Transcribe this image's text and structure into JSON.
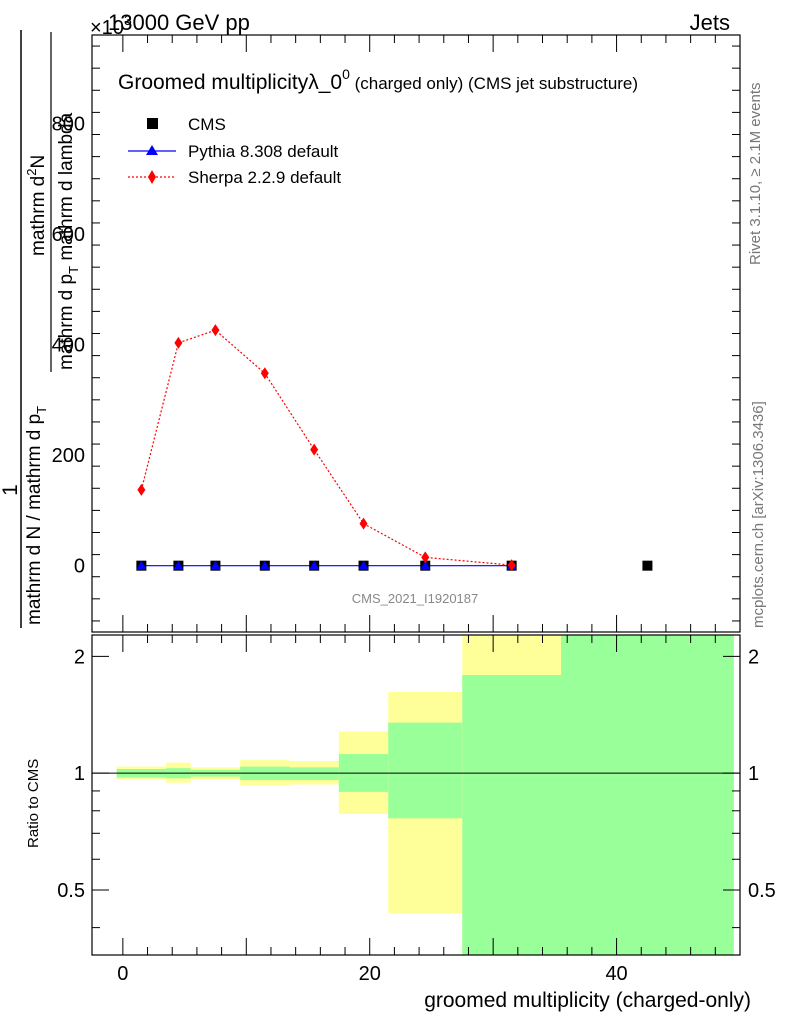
{
  "header": {
    "energy": "13000 GeV pp",
    "category": "Jets",
    "multiplier": "×10",
    "multiplier_exp": "3"
  },
  "chart_data": [
    {
      "type": "scatter",
      "panel": "main",
      "title_main": "Groomed multiplicityλ_0",
      "title_sup": "0",
      "title_small": " (charged only) (CMS jet substructure)",
      "ylabel_parts": [
        "1",
        "mathrm d N / mathrm d p",
        "T",
        "mathrm d p",
        "T",
        "mathrm d N",
        "mathrm d lambda",
        "mathrm d p",
        "T",
        "mathrm d N"
      ],
      "ylabel_fraction_top": "1",
      "ylabel_fraction_bottom": "mathrm d N / mathrm d p",
      "ylabel_fraction_bottom_sub": "T",
      "ylabel_deriv_top": "mathrm d",
      "ylabel_deriv_top_sup": "2",
      "ylabel_deriv_top_rest": "N",
      "ylabel_deriv_bottom": "mathrm d p",
      "ylabel_deriv_bottom_sub": "T",
      "ylabel_deriv_bottom_rest": " mathrm d lambda",
      "xlim": [
        -2.5,
        50
      ],
      "ylim": [
        -120,
        960
      ],
      "yticks": [
        0,
        200,
        400,
        600,
        800
      ],
      "ytick_labels": [
        "0",
        "200",
        "400",
        "600",
        "800"
      ],
      "series": [
        {
          "name": "CMS",
          "color": "#000000",
          "marker": "square",
          "x": [
            1.5,
            4.5,
            7.5,
            11.5,
            15.5,
            19.5,
            24.5,
            31.5,
            42.5
          ],
          "y": [
            0,
            0,
            0,
            0,
            0,
            0,
            0,
            0,
            0
          ]
        },
        {
          "name": "Pythia 8.308 default",
          "color": "#0000ff",
          "marker": "triangle",
          "line": "solid",
          "x": [
            1.5,
            4.5,
            7.5,
            11.5,
            15.5,
            19.5,
            24.5,
            31.5
          ],
          "y": [
            0,
            0,
            0,
            0,
            0,
            0,
            0,
            0
          ]
        },
        {
          "name": "Sherpa 2.2.9 default",
          "color": "#ff0000",
          "marker": "diamond",
          "line": "dotted",
          "x": [
            1.5,
            4.5,
            7.5,
            11.5,
            15.5,
            19.5,
            24.5,
            31.5
          ],
          "y": [
            137,
            403,
            426,
            348,
            210,
            76,
            15,
            1
          ]
        }
      ],
      "watermark": "CMS_2021_I1920187",
      "side_label_top": "Rivet 3.1.10, ≥ 2.1M events",
      "side_label_bottom": "mcplots.cern.ch [arXiv:1306.3436]"
    },
    {
      "type": "area",
      "panel": "ratio",
      "ylabel": "Ratio to CMS",
      "xlabel": "groomed multiplicity (charged-only)",
      "xlim": [
        -2.5,
        50
      ],
      "ylim": [
        0.34,
        2.27
      ],
      "yticks": [
        0.5,
        1,
        2
      ],
      "ytick_labels": [
        "0.5",
        "1",
        "2"
      ],
      "xticks": [
        0,
        20,
        40
      ],
      "xtick_labels": [
        "0",
        "20",
        "40"
      ],
      "bands": [
        {
          "x0": -0.5,
          "x1": 3.5,
          "yellow": [
            0.965,
            1.04
          ],
          "green": [
            0.975,
            1.025
          ]
        },
        {
          "x0": 3.5,
          "x1": 5.5,
          "yellow": [
            0.945,
            1.065
          ],
          "green": [
            0.97,
            1.03
          ]
        },
        {
          "x0": 5.5,
          "x1": 9.5,
          "yellow": [
            0.965,
            1.035
          ],
          "green": [
            0.98,
            1.02
          ]
        },
        {
          "x0": 9.5,
          "x1": 13.5,
          "yellow": [
            0.93,
            1.08
          ],
          "green": [
            0.96,
            1.04
          ]
        },
        {
          "x0": 13.5,
          "x1": 17.5,
          "yellow": [
            0.935,
            1.075
          ],
          "green": [
            0.96,
            1.035
          ]
        },
        {
          "x0": 17.5,
          "x1": 21.5,
          "yellow": [
            0.785,
            1.28
          ],
          "green": [
            0.895,
            1.12
          ]
        },
        {
          "x0": 21.5,
          "x1": 27.5,
          "yellow": [
            0.435,
            1.62
          ],
          "green": [
            0.765,
            1.35
          ]
        },
        {
          "x0": 27.5,
          "x1": 35.5,
          "yellow": [
            0.34,
            2.27
          ],
          "green": [
            0.34,
            1.79
          ]
        },
        {
          "x0": 35.5,
          "x1": 49.5,
          "yellow": [
            0.34,
            2.27
          ],
          "green": [
            0.34,
            2.27
          ]
        }
      ],
      "band_colors": {
        "yellow": "#ffff99",
        "green": "#99ff99"
      },
      "reference_line": 1
    }
  ]
}
